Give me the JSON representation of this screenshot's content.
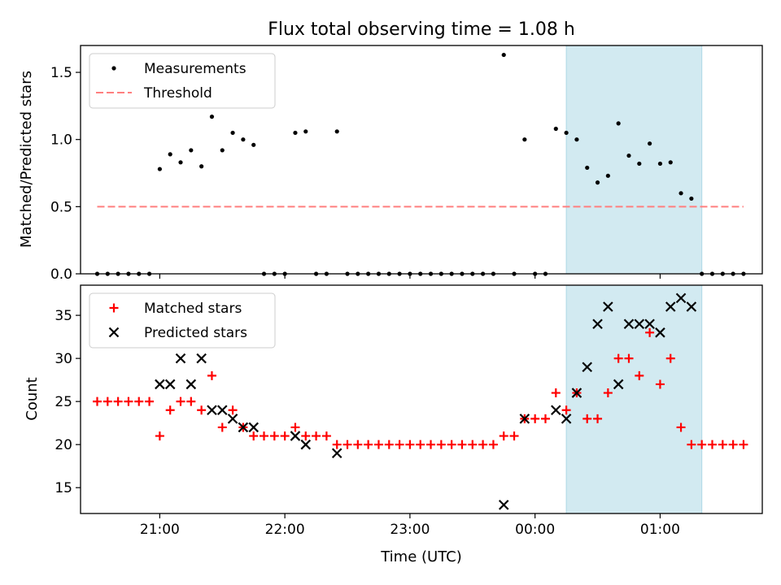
{
  "title": "Flux total observing time = 1.08 h",
  "colors": {
    "measurement": "#000000",
    "threshold": "#ff7f7f",
    "matched": "#ff0000",
    "predicted": "#000000",
    "shade": "#add8e6"
  },
  "chart_data": [
    {
      "type": "scatter",
      "ylabel": "Matched/Predicted stars",
      "ylim": [
        0,
        1.7
      ],
      "yticks": [
        0.0,
        0.5,
        1.0,
        1.5
      ],
      "ytick_labels": [
        "0.0",
        "0.5",
        "1.0",
        "1.5"
      ],
      "grid": false,
      "legend_position": "upper-left",
      "shaded_region": {
        "start": "00:15",
        "end": "01:20"
      },
      "series": [
        {
          "name": "Measurements",
          "marker": "dot",
          "points": [
            [
              "20:30",
              0.0
            ],
            [
              "20:35",
              0.0
            ],
            [
              "20:40",
              0.0
            ],
            [
              "20:45",
              0.0
            ],
            [
              "20:50",
              0.0
            ],
            [
              "20:55",
              0.0
            ],
            [
              "21:00",
              0.78
            ],
            [
              "21:05",
              0.89
            ],
            [
              "21:10",
              0.83
            ],
            [
              "21:15",
              0.92
            ],
            [
              "21:20",
              0.8
            ],
            [
              "21:25",
              1.17
            ],
            [
              "21:30",
              0.92
            ],
            [
              "21:35",
              1.05
            ],
            [
              "21:40",
              1.0
            ],
            [
              "21:45",
              0.96
            ],
            [
              "21:50",
              0.0
            ],
            [
              "21:55",
              0.0
            ],
            [
              "22:00",
              0.0
            ],
            [
              "22:05",
              1.05
            ],
            [
              "22:10",
              1.06
            ],
            [
              "22:15",
              0.0
            ],
            [
              "22:20",
              0.0
            ],
            [
              "22:25",
              1.06
            ],
            [
              "22:30",
              0.0
            ],
            [
              "22:35",
              0.0
            ],
            [
              "22:40",
              0.0
            ],
            [
              "22:45",
              0.0
            ],
            [
              "22:50",
              0.0
            ],
            [
              "22:55",
              0.0
            ],
            [
              "23:00",
              0.0
            ],
            [
              "23:05",
              0.0
            ],
            [
              "23:10",
              0.0
            ],
            [
              "23:15",
              0.0
            ],
            [
              "23:20",
              0.0
            ],
            [
              "23:25",
              0.0
            ],
            [
              "23:30",
              0.0
            ],
            [
              "23:35",
              0.0
            ],
            [
              "23:40",
              0.0
            ],
            [
              "23:45",
              1.63
            ],
            [
              "23:50",
              0.0
            ],
            [
              "23:55",
              1.0
            ],
            [
              "00:00",
              0.0
            ],
            [
              "00:05",
              0.0
            ],
            [
              "00:10",
              1.08
            ],
            [
              "00:15",
              1.05
            ],
            [
              "00:20",
              1.0
            ],
            [
              "00:25",
              0.79
            ],
            [
              "00:30",
              0.68
            ],
            [
              "00:35",
              0.73
            ],
            [
              "00:40",
              1.12
            ],
            [
              "00:45",
              0.88
            ],
            [
              "00:50",
              0.82
            ],
            [
              "00:55",
              0.97
            ],
            [
              "01:00",
              0.82
            ],
            [
              "01:05",
              0.83
            ],
            [
              "01:10",
              0.6
            ],
            [
              "01:15",
              0.56
            ],
            [
              "01:20",
              0.0
            ],
            [
              "01:25",
              0.0
            ],
            [
              "01:30",
              0.0
            ],
            [
              "01:35",
              0.0
            ],
            [
              "01:40",
              0.0
            ]
          ]
        },
        {
          "name": "Threshold",
          "marker": "dashed-line",
          "points": [
            [
              "20:30",
              0.5
            ],
            [
              "01:40",
              0.5
            ]
          ]
        }
      ]
    },
    {
      "type": "scatter",
      "xlabel": "Time (UTC)",
      "ylabel": "Count",
      "ylim": [
        12,
        38.5
      ],
      "yticks": [
        15,
        20,
        25,
        30,
        35
      ],
      "ytick_labels": [
        "15",
        "20",
        "25",
        "30",
        "35"
      ],
      "xlim": [
        "20:22",
        "01:49"
      ],
      "xticks": [
        "21:00",
        "22:00",
        "23:00",
        "00:00",
        "01:00"
      ],
      "xtick_labels": [
        "21:00",
        "22:00",
        "23:00",
        "00:00",
        "01:00"
      ],
      "grid": false,
      "legend_position": "upper-left",
      "shaded_region": {
        "start": "00:15",
        "end": "01:20"
      },
      "series": [
        {
          "name": "Matched stars",
          "marker": "plus",
          "points": [
            [
              "20:30",
              25
            ],
            [
              "20:35",
              25
            ],
            [
              "20:40",
              25
            ],
            [
              "20:45",
              25
            ],
            [
              "20:50",
              25
            ],
            [
              "20:55",
              25
            ],
            [
              "21:00",
              21
            ],
            [
              "21:05",
              24
            ],
            [
              "21:10",
              25
            ],
            [
              "21:15",
              25
            ],
            [
              "21:20",
              24
            ],
            [
              "21:25",
              28
            ],
            [
              "21:30",
              22
            ],
            [
              "21:35",
              24
            ],
            [
              "21:40",
              22
            ],
            [
              "21:45",
              21
            ],
            [
              "21:50",
              21
            ],
            [
              "21:55",
              21
            ],
            [
              "22:00",
              21
            ],
            [
              "22:05",
              22
            ],
            [
              "22:10",
              21
            ],
            [
              "22:15",
              21
            ],
            [
              "22:20",
              21
            ],
            [
              "22:25",
              20
            ],
            [
              "22:30",
              20
            ],
            [
              "22:35",
              20
            ],
            [
              "22:40",
              20
            ],
            [
              "22:45",
              20
            ],
            [
              "22:50",
              20
            ],
            [
              "22:55",
              20
            ],
            [
              "23:00",
              20
            ],
            [
              "23:05",
              20
            ],
            [
              "23:10",
              20
            ],
            [
              "23:15",
              20
            ],
            [
              "23:20",
              20
            ],
            [
              "23:25",
              20
            ],
            [
              "23:30",
              20
            ],
            [
              "23:35",
              20
            ],
            [
              "23:40",
              20
            ],
            [
              "23:45",
              21
            ],
            [
              "23:50",
              21
            ],
            [
              "23:55",
              23
            ],
            [
              "00:00",
              23
            ],
            [
              "00:05",
              23
            ],
            [
              "00:10",
              26
            ],
            [
              "00:15",
              24
            ],
            [
              "00:20",
              26
            ],
            [
              "00:25",
              23
            ],
            [
              "00:30",
              23
            ],
            [
              "00:35",
              26
            ],
            [
              "00:40",
              30
            ],
            [
              "00:45",
              30
            ],
            [
              "00:50",
              28
            ],
            [
              "00:55",
              33
            ],
            [
              "01:00",
              27
            ],
            [
              "01:05",
              30
            ],
            [
              "01:10",
              22
            ],
            [
              "01:15",
              20
            ],
            [
              "01:20",
              20
            ],
            [
              "01:25",
              20
            ],
            [
              "01:30",
              20
            ],
            [
              "01:35",
              20
            ],
            [
              "01:40",
              20
            ]
          ]
        },
        {
          "name": "Predicted stars",
          "marker": "x",
          "points": [
            [
              "21:00",
              27
            ],
            [
              "21:05",
              27
            ],
            [
              "21:10",
              30
            ],
            [
              "21:15",
              27
            ],
            [
              "21:20",
              30
            ],
            [
              "21:25",
              24
            ],
            [
              "21:30",
              24
            ],
            [
              "21:35",
              23
            ],
            [
              "21:40",
              22
            ],
            [
              "21:45",
              22
            ],
            [
              "22:05",
              21
            ],
            [
              "22:10",
              20
            ],
            [
              "22:25",
              19
            ],
            [
              "23:45",
              13
            ],
            [
              "23:55",
              23
            ],
            [
              "00:10",
              24
            ],
            [
              "00:15",
              23
            ],
            [
              "00:20",
              26
            ],
            [
              "00:25",
              29
            ],
            [
              "00:30",
              34
            ],
            [
              "00:35",
              36
            ],
            [
              "00:40",
              27
            ],
            [
              "00:45",
              34
            ],
            [
              "00:50",
              34
            ],
            [
              "00:55",
              34
            ],
            [
              "01:00",
              33
            ],
            [
              "01:05",
              36
            ],
            [
              "01:10",
              37
            ],
            [
              "01:15",
              36
            ]
          ]
        }
      ]
    }
  ]
}
